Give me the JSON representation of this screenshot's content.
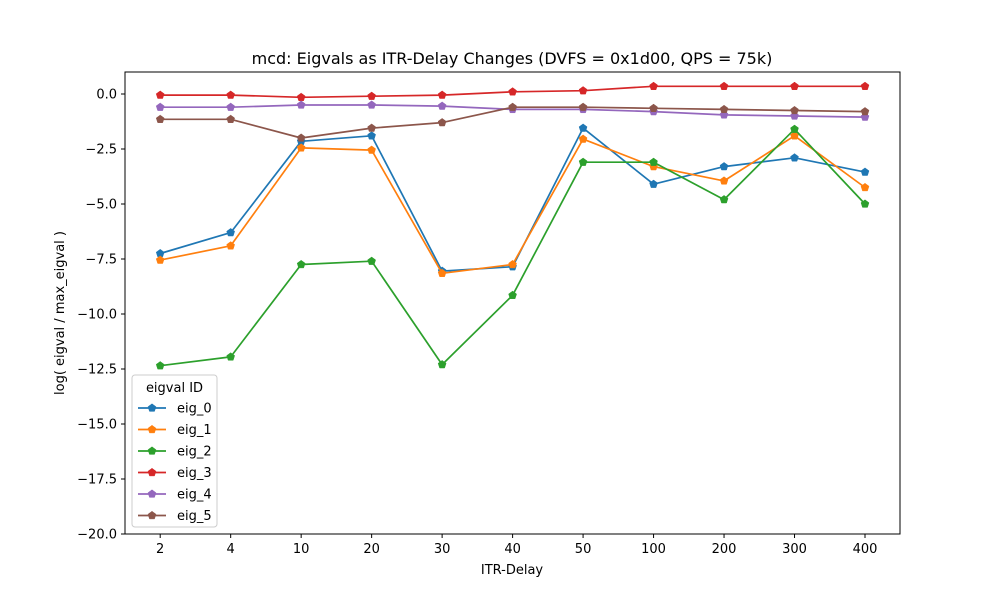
{
  "chart_data": {
    "type": "line",
    "title": "mcd: Eigvals as ITR-Delay Changes (DVFS = 0x1d00, QPS = 75k)",
    "xlabel": "ITR-Delay",
    "ylabel": "log( eigval / max_eigval )",
    "categories": [
      "2",
      "4",
      "10",
      "20",
      "30",
      "40",
      "50",
      "100",
      "200",
      "300",
      "400"
    ],
    "ylim": [
      -20.0,
      1.0
    ],
    "yticks": [
      0.0,
      -2.5,
      -5.0,
      -7.5,
      -10.0,
      -12.5,
      -15.0,
      -17.5,
      -20.0
    ],
    "ytick_labels": [
      "0.0",
      "−2.5",
      "−5.0",
      "−7.5",
      "−10.0",
      "−12.5",
      "−15.0",
      "−17.5",
      "−20.0"
    ],
    "grid": false,
    "legend": {
      "title": "eigval ID",
      "placement": "lower-left"
    },
    "marker": "pentagon",
    "series": [
      {
        "name": "eig_0",
        "color": "#1f77b4",
        "values": [
          -7.25,
          -6.3,
          -2.15,
          -1.9,
          -8.05,
          -7.85,
          -1.55,
          -4.1,
          -3.3,
          -2.9,
          -3.55
        ]
      },
      {
        "name": "eig_1",
        "color": "#ff7f0e",
        "values": [
          -7.55,
          -6.9,
          -2.45,
          -2.55,
          -8.15,
          -7.75,
          -2.05,
          -3.3,
          -3.95,
          -1.9,
          -4.25
        ]
      },
      {
        "name": "eig_2",
        "color": "#2ca02c",
        "values": [
          -12.35,
          -11.95,
          -7.75,
          -7.6,
          -12.3,
          -9.15,
          -3.1,
          -3.1,
          -4.8,
          -1.6,
          -5.0
        ]
      },
      {
        "name": "eig_3",
        "color": "#d62728",
        "values": [
          -0.05,
          -0.05,
          -0.15,
          -0.1,
          -0.05,
          0.1,
          0.15,
          0.35,
          0.35,
          0.35,
          0.35
        ]
      },
      {
        "name": "eig_4",
        "color": "#9467bd",
        "values": [
          -0.6,
          -0.6,
          -0.5,
          -0.5,
          -0.55,
          -0.7,
          -0.7,
          -0.8,
          -0.95,
          -1.0,
          -1.05
        ]
      },
      {
        "name": "eig_5",
        "color": "#8c564b",
        "values": [
          -1.15,
          -1.15,
          -2.0,
          -1.55,
          -1.3,
          -0.6,
          -0.6,
          -0.65,
          -0.7,
          -0.75,
          -0.8
        ]
      }
    ]
  }
}
